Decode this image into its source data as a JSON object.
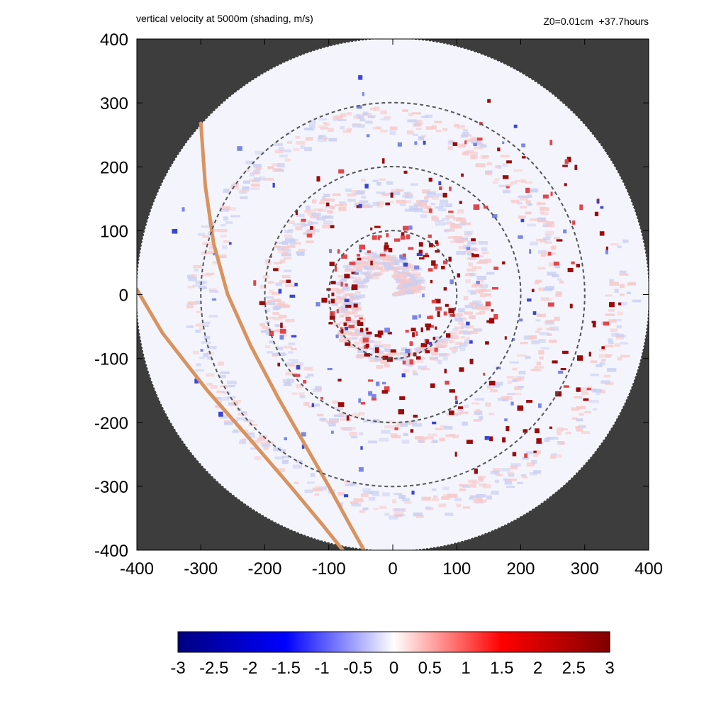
{
  "header": {
    "title": "vertical velocity at 5000m (shading, m/s)",
    "info": "Z0=0.01cm  +37.7hours"
  },
  "chart_data": {
    "type": "heatmap",
    "title": "vertical velocity at 5000m (shading, m/s)",
    "subtitle": "Z0=0.01cm  +37.7hours",
    "xlim": [
      -400,
      400
    ],
    "ylim": [
      -400,
      400
    ],
    "x_ticks": [
      "-400",
      "-300",
      "-200",
      "-100",
      "0",
      "100",
      "200",
      "300",
      "400"
    ],
    "y_ticks": [
      "400",
      "300",
      "200",
      "100",
      "0",
      "-100",
      "-200",
      "-300",
      "-400"
    ],
    "x_tick_values": [
      -400,
      -300,
      -200,
      -100,
      0,
      100,
      200,
      300,
      400
    ],
    "y_tick_values": [
      400,
      300,
      200,
      100,
      0,
      -100,
      -200,
      -300,
      -400
    ],
    "domain_radius": 400,
    "dashed_circle_radii": [
      100,
      200,
      300
    ],
    "colorbar": {
      "range": [
        -3,
        3
      ],
      "ticks": [
        "-3",
        "-2.5",
        "-2",
        "-1.5",
        "-1",
        "-0.5",
        "0",
        "0.5",
        "1",
        "1.5",
        "2",
        "2.5",
        "3"
      ],
      "tick_values": [
        -3,
        -2.5,
        -2,
        -1.5,
        -1,
        -0.5,
        0,
        0.5,
        1,
        1.5,
        2,
        2.5,
        3
      ],
      "colors": [
        "#000080",
        "#0000ff",
        "#ffffff",
        "#ff0000",
        "#800000"
      ]
    },
    "coastline_color": "#d9935f",
    "coastlines": [
      [
        [
          -300,
          268
        ],
        [
          -293,
          170
        ],
        [
          -280,
          80
        ],
        [
          -258,
          0
        ],
        [
          -222,
          -80
        ],
        [
          -180,
          -160
        ],
        [
          -140,
          -230
        ],
        [
          -100,
          -300
        ],
        [
          -70,
          -355
        ],
        [
          -45,
          -400
        ]
      ],
      [
        [
          -400,
          8
        ],
        [
          -360,
          -60
        ],
        [
          -290,
          -150
        ],
        [
          -220,
          -230
        ],
        [
          -160,
          -300
        ],
        [
          -110,
          -360
        ],
        [
          -78,
          -400
        ]
      ]
    ],
    "background_color": "#3d3d3d"
  }
}
